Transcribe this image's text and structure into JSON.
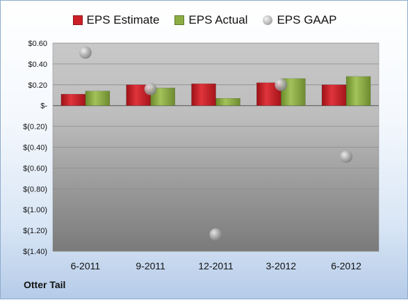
{
  "company": "Otter Tail",
  "colors": {
    "estimate": "#cc2027",
    "actual": "#8cad43",
    "gaap": "#b8b8b8"
  },
  "chart_data": {
    "type": "bar",
    "categories": [
      "6-2011",
      "9-2011",
      "12-2011",
      "3-2012",
      "6-2012"
    ],
    "series": [
      {
        "name": "EPS Estimate",
        "kind": "bar",
        "values": [
          0.11,
          0.2,
          0.21,
          0.22,
          0.2
        ]
      },
      {
        "name": "EPS Actual",
        "kind": "bar",
        "values": [
          0.14,
          0.17,
          0.07,
          0.26,
          0.28
        ]
      },
      {
        "name": "EPS GAAP",
        "kind": "marker",
        "values": [
          0.51,
          0.16,
          -1.24,
          0.2,
          -0.49
        ]
      }
    ],
    "ylim": [
      -1.4,
      0.6
    ],
    "yticks": [
      {
        "value": 0.6,
        "label": "$0.60"
      },
      {
        "value": 0.4,
        "label": "$0.40"
      },
      {
        "value": 0.2,
        "label": "$0.20"
      },
      {
        "value": 0.0,
        "label": "$-"
      },
      {
        "value": -0.2,
        "label": "$(0.20)"
      },
      {
        "value": -0.4,
        "label": "$(0.40)"
      },
      {
        "value": -0.6,
        "label": "$(0.60)"
      },
      {
        "value": -0.8,
        "label": "$(0.80)"
      },
      {
        "value": -1.0,
        "label": "$(1.00)"
      },
      {
        "value": -1.2,
        "label": "$(1.20)"
      },
      {
        "value": -1.4,
        "label": "$(1.40)"
      }
    ],
    "legend_position": "top",
    "grid": true
  }
}
